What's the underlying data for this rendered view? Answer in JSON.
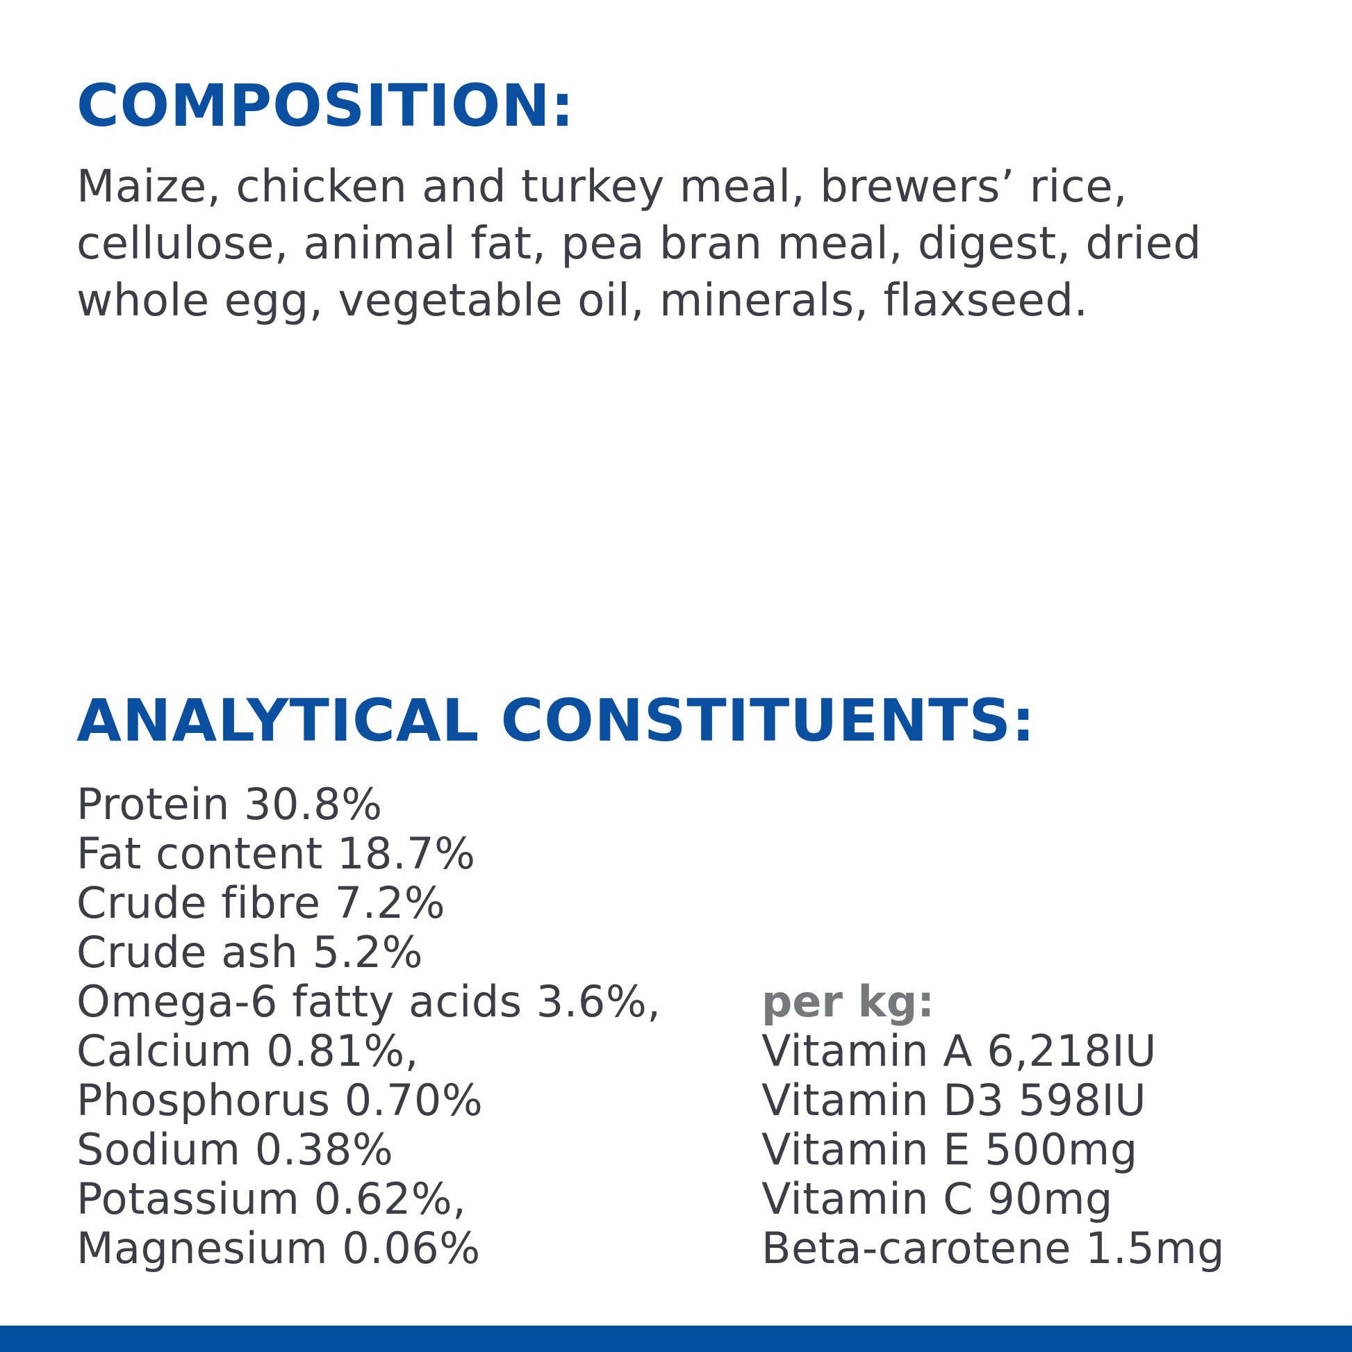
{
  "composition": {
    "heading": "COMPOSITION:",
    "text": "Maize, chicken and turkey meal, brewers’ rice, cellulose, animal fat, pea bran meal, digest, dried whole egg, vegetable oil, minerals, flaxseed."
  },
  "analytical": {
    "heading": "ANALYTICAL CONSTITUENTS:",
    "items": [
      "Protein 30.8%",
      "Fat content 18.7%",
      "Crude fibre 7.2%",
      "Crude ash 5.2%",
      "Omega-6 fatty acids 3.6%,",
      "Calcium 0.81%,",
      "Phosphorus 0.70%",
      "Sodium 0.38%",
      "Potassium 0.62%,",
      "Magnesium 0.06%"
    ],
    "per_kg_label": "per kg:",
    "per_kg_items": [
      "Vitamin A 6,218IU",
      "Vitamin D3 598IU",
      "Vitamin E 500mg",
      "Vitamin C 90mg",
      "Beta-carotene 1.5mg"
    ]
  },
  "colors": {
    "heading": "#0a4fa0",
    "body_text": "#3d3d45",
    "per_kg": "#77787b",
    "footer_bar": "#0050a0"
  }
}
